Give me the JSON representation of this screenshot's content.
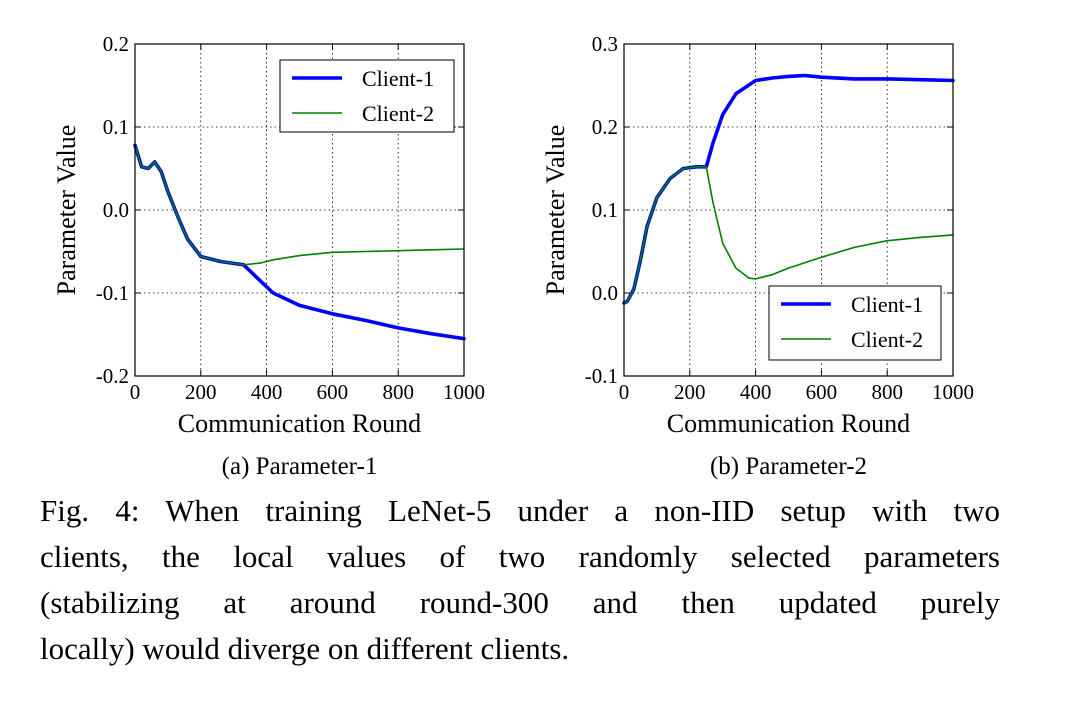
{
  "chart_data": [
    {
      "type": "line",
      "subcaption": "(a) Parameter-1",
      "xlabel": "Communication Round",
      "ylabel": "Parameter Value",
      "xlim": [
        0,
        1000
      ],
      "ylim": [
        -0.2,
        0.2
      ],
      "xticks": [
        "0",
        "200",
        "400",
        "600",
        "800",
        "1000"
      ],
      "xtick_values": [
        0,
        200,
        400,
        600,
        800,
        1000
      ],
      "yticks": [
        "-0.2",
        "-0.1",
        "0.0",
        "0.1",
        "0.2"
      ],
      "ytick_values": [
        -0.2,
        -0.1,
        0.0,
        0.1,
        0.2
      ],
      "grid": true,
      "legend_position": "top-right",
      "series": [
        {
          "name": "Client-1",
          "color": "#0000ff",
          "style": "thick",
          "x": [
            0,
            20,
            40,
            60,
            80,
            100,
            130,
            160,
            200,
            260,
            330,
            380,
            420,
            500,
            600,
            700,
            800,
            900,
            1000
          ],
          "y": [
            0.078,
            0.052,
            0.05,
            0.058,
            0.046,
            0.022,
            -0.008,
            -0.035,
            -0.056,
            -0.062,
            -0.066,
            -0.085,
            -0.1,
            -0.115,
            -0.125,
            -0.133,
            -0.142,
            -0.149,
            -0.155
          ]
        },
        {
          "name": "Client-2",
          "color": "#008000",
          "style": "thin",
          "x": [
            0,
            20,
            40,
            60,
            80,
            100,
            130,
            160,
            200,
            260,
            330,
            380,
            420,
            500,
            600,
            700,
            800,
            900,
            1000
          ],
          "y": [
            0.078,
            0.052,
            0.05,
            0.058,
            0.046,
            0.022,
            -0.008,
            -0.035,
            -0.056,
            -0.062,
            -0.066,
            -0.064,
            -0.06,
            -0.055,
            -0.051,
            -0.05,
            -0.049,
            -0.048,
            -0.047
          ]
        }
      ]
    },
    {
      "type": "line",
      "subcaption": "(b) Parameter-2",
      "xlabel": "Communication Round",
      "ylabel": "Parameter Value",
      "xlim": [
        0,
        1000
      ],
      "ylim": [
        -0.1,
        0.3
      ],
      "xticks": [
        "0",
        "200",
        "400",
        "600",
        "800",
        "1000"
      ],
      "xtick_values": [
        0,
        200,
        400,
        600,
        800,
        1000
      ],
      "yticks": [
        "-0.1",
        "0.0",
        "0.1",
        "0.2",
        "0.3"
      ],
      "ytick_values": [
        -0.1,
        0.0,
        0.1,
        0.2,
        0.3
      ],
      "grid": true,
      "legend_position": "bottom-right",
      "series": [
        {
          "name": "Client-1",
          "color": "#0000ff",
          "style": "thick",
          "x": [
            0,
            10,
            30,
            50,
            70,
            100,
            140,
            180,
            220,
            250,
            270,
            300,
            340,
            400,
            450,
            500,
            550,
            600,
            700,
            800,
            900,
            1000
          ],
          "y": [
            -0.012,
            -0.01,
            0.005,
            0.04,
            0.08,
            0.115,
            0.138,
            0.15,
            0.152,
            0.152,
            0.18,
            0.215,
            0.24,
            0.256,
            0.259,
            0.261,
            0.262,
            0.26,
            0.258,
            0.258,
            0.257,
            0.256
          ]
        },
        {
          "name": "Client-2",
          "color": "#008000",
          "style": "thin",
          "x": [
            0,
            10,
            30,
            50,
            70,
            100,
            140,
            180,
            220,
            250,
            270,
            300,
            340,
            380,
            400,
            450,
            500,
            600,
            700,
            800,
            900,
            1000
          ],
          "y": [
            -0.012,
            -0.01,
            0.005,
            0.04,
            0.08,
            0.115,
            0.138,
            0.15,
            0.152,
            0.152,
            0.11,
            0.06,
            0.03,
            0.018,
            0.017,
            0.022,
            0.03,
            0.043,
            0.055,
            0.063,
            0.067,
            0.07
          ]
        }
      ]
    }
  ],
  "caption": {
    "lines": [
      "Fig. 4: When training LeNet-5 under a non-IID setup with two",
      "clients, the local values of two randomly selected parameters",
      "(stabilizing at around round-300 and then updated purely",
      "locally) would diverge on different clients."
    ]
  }
}
